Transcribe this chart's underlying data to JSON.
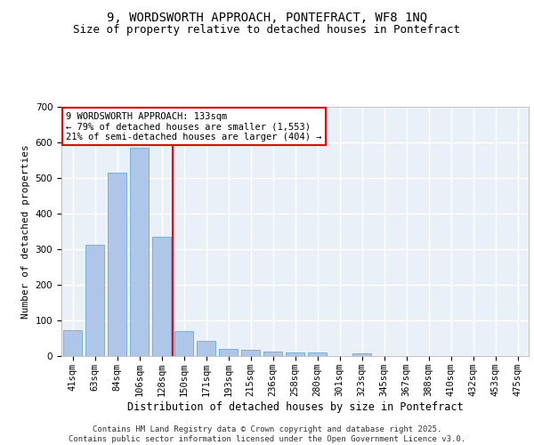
{
  "title1": "9, WORDSWORTH APPROACH, PONTEFRACT, WF8 1NQ",
  "title2": "Size of property relative to detached houses in Pontefract",
  "xlabel": "Distribution of detached houses by size in Pontefract",
  "ylabel": "Number of detached properties",
  "categories": [
    "41sqm",
    "63sqm",
    "84sqm",
    "106sqm",
    "128sqm",
    "150sqm",
    "171sqm",
    "193sqm",
    "215sqm",
    "236sqm",
    "258sqm",
    "280sqm",
    "301sqm",
    "323sqm",
    "345sqm",
    "367sqm",
    "388sqm",
    "410sqm",
    "432sqm",
    "453sqm",
    "475sqm"
  ],
  "values": [
    72,
    312,
    515,
    585,
    335,
    70,
    42,
    20,
    17,
    12,
    10,
    10,
    0,
    7,
    0,
    0,
    0,
    0,
    0,
    0,
    0
  ],
  "bar_color": "#aec6e8",
  "bar_edge_color": "#5a9fd4",
  "vline_color": "red",
  "annotation_text": "9 WORDSWORTH APPROACH: 133sqm\n← 79% of detached houses are smaller (1,553)\n21% of semi-detached houses are larger (404) →",
  "annotation_box_color": "white",
  "annotation_box_edgecolor": "red",
  "ylim": [
    0,
    700
  ],
  "yticks": [
    0,
    100,
    200,
    300,
    400,
    500,
    600,
    700
  ],
  "background_color": "#eaf0f8",
  "grid_color": "white",
  "footer_text": "Contains HM Land Registry data © Crown copyright and database right 2025.\nContains public sector information licensed under the Open Government Licence v3.0.",
  "title1_fontsize": 10,
  "title2_fontsize": 9,
  "xlabel_fontsize": 8.5,
  "ylabel_fontsize": 8,
  "tick_fontsize": 7.5,
  "annotation_fontsize": 7.5,
  "footer_fontsize": 6.5
}
